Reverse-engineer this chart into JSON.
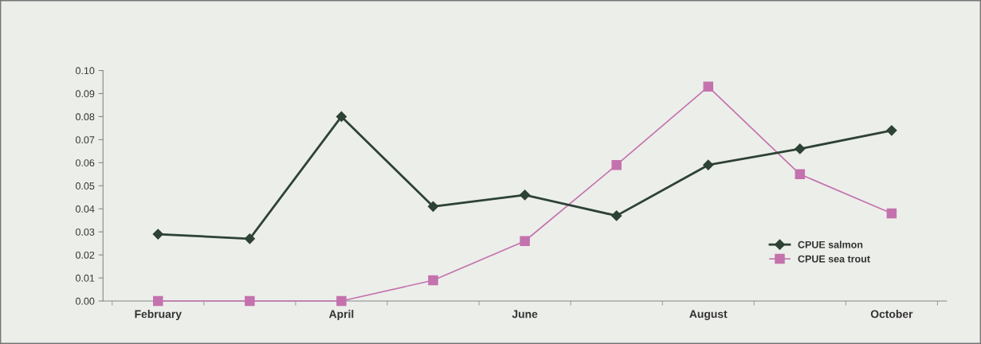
{
  "chart_data": {
    "type": "line",
    "categories": [
      "February",
      null,
      "April",
      null,
      "June",
      null,
      "August",
      null,
      "October"
    ],
    "series": [
      {
        "name": "CPUE salmon",
        "color": "#2e4236",
        "marker": "diamond",
        "values": [
          0.029,
          0.027,
          0.08,
          0.041,
          0.046,
          0.037,
          0.059,
          0.066,
          0.074
        ]
      },
      {
        "name": "CPUE sea trout",
        "color": "#c472ad",
        "marker": "square",
        "values": [
          0,
          0,
          0,
          0.009,
          0.026,
          0.059,
          0.093,
          0.055,
          0.038
        ]
      }
    ],
    "ylim": [
      0,
      0.1
    ],
    "yticks": [
      {
        "value": 0,
        "label": "0.00"
      },
      {
        "value": 0.01,
        "label": "0.01"
      },
      {
        "value": 0.02,
        "label": "0.02"
      },
      {
        "value": 0.03,
        "label": "0.03"
      },
      {
        "value": 0.04,
        "label": "0.04"
      },
      {
        "value": 0.05,
        "label": "0.05"
      },
      {
        "value": 0.06,
        "label": "0.06"
      },
      {
        "value": 0.07,
        "label": "0.07"
      },
      {
        "value": 0.08,
        "label": "0.08"
      },
      {
        "value": 0.09,
        "label": "0.09"
      },
      {
        "value": 0.1,
        "label": "0.10"
      }
    ],
    "grid": false,
    "legend": "lower right"
  }
}
